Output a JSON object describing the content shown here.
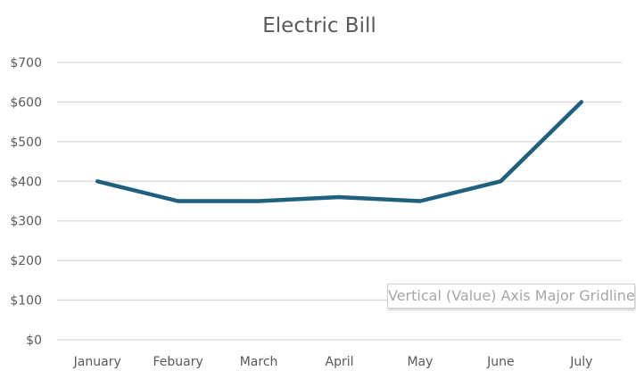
{
  "chart_data": {
    "type": "line",
    "title": "Electric Bill",
    "categories": [
      "January",
      "Febuary",
      "March",
      "April",
      "May",
      "June",
      "July"
    ],
    "series": [
      {
        "values": [
          400,
          350,
          350,
          360,
          350,
          400,
          600
        ]
      }
    ],
    "ylim": [
      0,
      700
    ],
    "yticks": [
      0,
      100,
      200,
      300,
      400,
      500,
      600,
      700
    ],
    "ytick_labels": [
      "$0",
      "$100",
      "$200",
      "$300",
      "$400",
      "$500",
      "$600",
      "$700"
    ],
    "grid": true,
    "legend": "none",
    "line_color": "#1f5f7f"
  },
  "tooltip": {
    "text": "Vertical (Value) Axis Major Gridlines"
  }
}
